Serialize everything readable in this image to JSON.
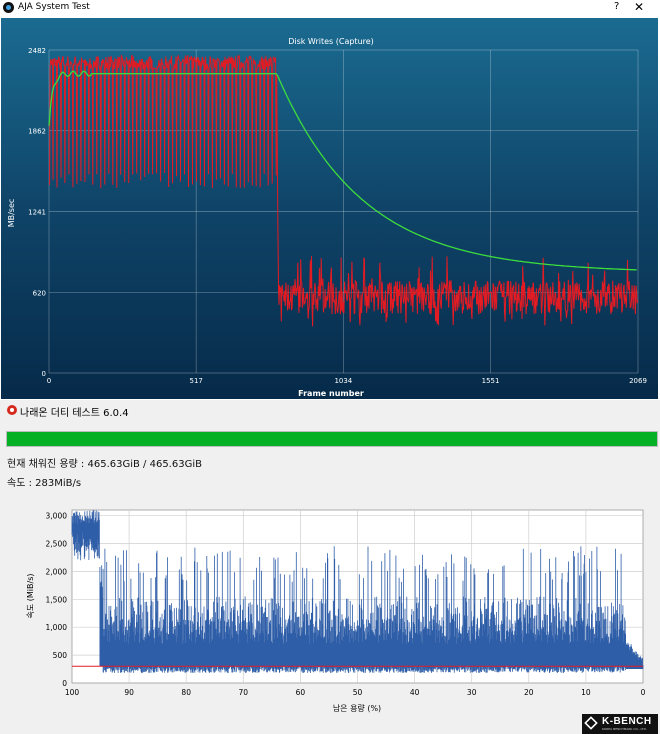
{
  "window1": {
    "title": "AJA System Test",
    "help_label": "?",
    "close_label": "✕",
    "icon": "aja-app-icon"
  },
  "aja_chart": {
    "type": "line",
    "title": "Disk Writes (Capture)",
    "xlabel": "Frame number",
    "ylabel": "MB/sec",
    "x_ticks": [
      "0",
      "517",
      "1034",
      "1551",
      "2069"
    ],
    "y_ticks": [
      "0",
      "620",
      "1241",
      "1862",
      "2482"
    ],
    "xlim": [
      0,
      2069
    ],
    "ylim": [
      0,
      2482
    ],
    "grid": true,
    "series": [
      {
        "color": "#e31b23",
        "pattern": "instantaneous write speed: ~2380 with periodic dips to ~1450 until frame ~800, then drop to ~450-700"
      },
      {
        "color": "#3ddc3d",
        "pattern": "running average: rises to ~2300 by frame ~800, then decays to ~770 at frame 2069"
      }
    ]
  },
  "chart_data": [
    {
      "type": "line",
      "title": "Disk Writes (Capture)",
      "xlabel": "Frame number",
      "ylabel": "MB/sec",
      "xlim": [
        0,
        2069
      ],
      "ylim": [
        0,
        2482
      ],
      "x_ticks": [
        0,
        517,
        1034,
        1551,
        2069
      ],
      "y_ticks": [
        0,
        620,
        1241,
        1862,
        2482
      ],
      "series": [
        {
          "x": [
            0,
            50,
            100,
            200,
            300,
            400,
            500,
            600,
            700,
            800,
            900,
            1034,
            1200,
            1400,
            1551,
            1800,
            2069
          ],
          "values": [
            1900,
            2250,
            2280,
            2300,
            2300,
            2300,
            2300,
            2300,
            2300,
            2300,
            1750,
            1330,
            1100,
            940,
            880,
            810,
            770
          ]
        },
        {
          "x": [
            0,
            400,
            790,
            810,
            1000,
            1500,
            2069
          ],
          "values": [
            2380,
            2380,
            2380,
            550,
            550,
            560,
            560
          ]
        }
      ]
    },
    {
      "type": "area",
      "xlabel": "남은 용량 (%)",
      "ylabel": "속도 (MiB/s)",
      "xlim": [
        100,
        0
      ],
      "ylim": [
        0,
        3100
      ],
      "x_ticks": [
        100,
        90,
        80,
        70,
        60,
        50,
        40,
        30,
        20,
        10,
        0
      ],
      "y_ticks": [
        0,
        500,
        1000,
        1500,
        2000,
        2500,
        3000
      ],
      "series": [
        {
          "x": [
            100,
            96,
            95,
            90,
            50,
            10,
            5,
            1,
            0
          ],
          "values": [
            3000,
            2950,
            350,
            1100,
            1100,
            1100,
            1000,
            450,
            300
          ]
        },
        {
          "x": [
            100,
            0
          ],
          "values": [
            300,
            300
          ]
        }
      ]
    }
  ],
  "window2": {
    "title": "나래온 더티 테스트 6.0.4",
    "progress_percent": 100,
    "capacity_label": "현재 채워진 용량 : 465.63GiB / 465.63GiB",
    "speed_label": "속도 : 283MiB/s"
  },
  "naraeon_chart": {
    "xlabel": "남은 용량 (%)",
    "ylabel": "속도 (MiB/s)",
    "x_ticks": [
      "100",
      "90",
      "80",
      "70",
      "60",
      "50",
      "40",
      "30",
      "20",
      "10",
      "0"
    ],
    "y_ticks": [
      "0",
      "500",
      "1,000",
      "1,500",
      "2,000",
      "2,500",
      "3,000"
    ]
  },
  "logo": {
    "text": "K-BENCH",
    "sub": "KOREA BENCHMARK CO., LTD."
  }
}
